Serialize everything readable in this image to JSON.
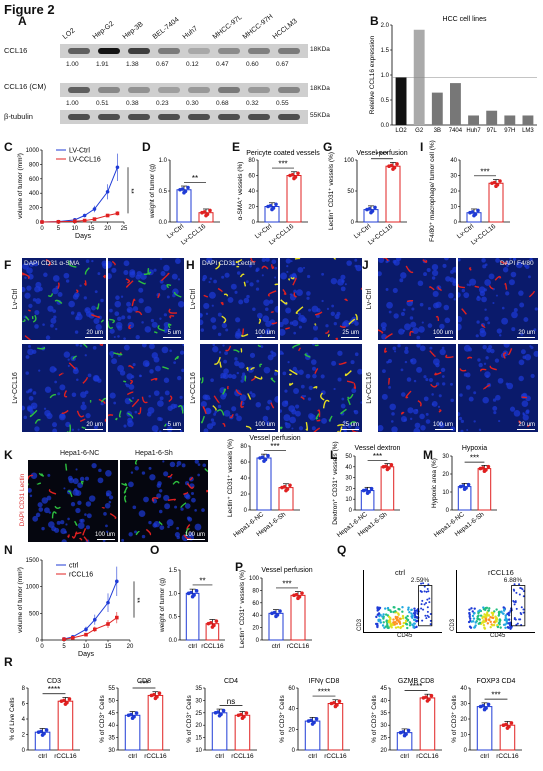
{
  "figure_title": "Figure 2",
  "panels": {
    "A": "A",
    "B": "B",
    "C": "C",
    "D": "D",
    "E": "E",
    "F": "F",
    "G": "G",
    "H": "H",
    "I": "I",
    "J": "J",
    "K": "K",
    "L": "L",
    "M": "M",
    "N": "N",
    "O": "O",
    "P": "P",
    "Q": "Q",
    "R": "R"
  },
  "western": {
    "lanes": [
      "LO2",
      "Hep-G2",
      "Hep-3B",
      "BEL-7404",
      "Huh7",
      "MHCC-97L",
      "MHCC-97H",
      "HCCLM3"
    ],
    "rows": [
      {
        "label": "CCL16",
        "kda": "18KDa",
        "values": [
          "1.00",
          "1.91",
          "1.38",
          "0.67",
          "0.12",
          "0.47",
          "0.60",
          "0.67"
        ]
      },
      {
        "label": "CCL16 (CM)",
        "kda": "18KDa",
        "values": [
          "1.00",
          "0.51",
          "0.38",
          "0.23",
          "0.30",
          "0.68",
          "0.32",
          "0.55"
        ]
      },
      {
        "label": "β-tubulin",
        "kda": "55KDa",
        "values": []
      }
    ]
  },
  "chart_data": [
    {
      "id": "B",
      "type": "bar",
      "title": "HCC cell lines",
      "ylabel": "Relelive CCL16 expression",
      "categories": [
        "LO2",
        "G2",
        "3B",
        "7404",
        "Huh7",
        "97L",
        "97H",
        "LM3"
      ],
      "values": [
        1.0,
        2.0,
        0.68,
        0.88,
        0.2,
        0.3,
        0.2,
        0.2
      ],
      "ylim": [
        0,
        2.1
      ],
      "yticks": [
        "0.0",
        "0.5",
        "1.0",
        "1.5",
        "2.0"
      ]
    },
    {
      "id": "C",
      "type": "line",
      "ylabel": "volume of tumor (mm³)",
      "xlabel": "Days",
      "x": [
        0,
        5,
        10,
        13,
        16,
        20,
        23
      ],
      "series": [
        {
          "name": "LV-Ctrl",
          "values": [
            0,
            5,
            30,
            90,
            180,
            420,
            760
          ]
        },
        {
          "name": "LV-CCL16",
          "values": [
            0,
            3,
            10,
            20,
            40,
            90,
            120
          ]
        }
      ],
      "ylim": [
        0,
        1000
      ],
      "yticks": [
        "0",
        "200",
        "400",
        "600",
        "800",
        "1000"
      ],
      "xticks": [
        "0",
        "5",
        "10",
        "15",
        "20",
        "25"
      ],
      "sig": "**"
    },
    {
      "id": "D",
      "type": "scatter",
      "ylabel": "weight of tumor (g)",
      "categories": [
        "Lv-Ctrl",
        "Lv-CCL16"
      ],
      "values": [
        0.52,
        0.15
      ],
      "ylim": [
        0,
        1.0
      ],
      "yticks": [
        "0.0",
        "0.5",
        "1.0"
      ],
      "sig": "**"
    },
    {
      "id": "E",
      "type": "scatter",
      "title": "Pericyte coated vessels",
      "ylabel": "α-SMA⁺ vessels (%)",
      "categories": [
        "Lv-Ctrl",
        "Lv-CCL16"
      ],
      "values": [
        20,
        60
      ],
      "ylim": [
        0,
        80
      ],
      "yticks": [
        "0",
        "20",
        "40",
        "60",
        "80"
      ],
      "sig": "***"
    },
    {
      "id": "G",
      "type": "scatter",
      "title": "Vessel perfusion",
      "ylabel": "Lectin⁺ CD31⁺ vessels (%)",
      "categories": [
        "Lv-Ctrl",
        "Lv-CCL16"
      ],
      "values": [
        20,
        90
      ],
      "ylim": [
        0,
        100
      ],
      "yticks": [
        "0",
        "50",
        "100"
      ],
      "sig": "****"
    },
    {
      "id": "I",
      "type": "scatter",
      "ylabel": "F4/80⁺ macrophage/ tumor cell (%)",
      "categories": [
        "Lv-Ctrl",
        "Lv-CCL16"
      ],
      "values": [
        6,
        25
      ],
      "ylim": [
        0,
        40
      ],
      "yticks": [
        "0",
        "10",
        "20",
        "30",
        "40"
      ],
      "sig": "***"
    },
    {
      "id": "K",
      "type": "scatter",
      "title": "Vessel perfusion",
      "ylabel": "Lectin⁺ CD31⁺ vessels (%)",
      "categories": [
        "Hepa1-6-NC",
        "Hepa1-6-Sh"
      ],
      "values": [
        65,
        28
      ],
      "ylim": [
        0,
        80
      ],
      "yticks": [
        "0",
        "20",
        "40",
        "60",
        "80"
      ],
      "sig": "***"
    },
    {
      "id": "L",
      "type": "scatter",
      "title": "Vessel dextron",
      "ylabel": "Dextron⁺ CD31⁺ vessels (%)",
      "categories": [
        "Hepa1-6-NC",
        "Hepa1-6-Sh"
      ],
      "values": [
        18,
        40
      ],
      "ylim": [
        0,
        50
      ],
      "yticks": [
        "0",
        "10",
        "20",
        "30",
        "40",
        "50"
      ],
      "sig": "***"
    },
    {
      "id": "M",
      "type": "scatter",
      "title": "Hypoxia",
      "ylabel": "Hypoxic area (%)",
      "categories": [
        "Hepa1-6-NC",
        "Hepa1-6-Sh"
      ],
      "values": [
        13,
        23
      ],
      "ylim": [
        0,
        30
      ],
      "yticks": [
        "0",
        "10",
        "20",
        "30"
      ],
      "sig": "***"
    },
    {
      "id": "N",
      "type": "line",
      "ylabel": "volume of tumor (mm³)",
      "xlabel": "Days",
      "x": [
        5,
        7,
        10,
        12,
        15,
        17
      ],
      "series": [
        {
          "name": "ctrl",
          "values": [
            20,
            60,
            200,
            380,
            700,
            1100
          ]
        },
        {
          "name": "rCCL16",
          "values": [
            15,
            40,
            100,
            200,
            300,
            420
          ]
        }
      ],
      "ylim": [
        0,
        1500
      ],
      "yticks": [
        "0",
        "500",
        "1000",
        "1500"
      ],
      "xticks": [
        "0",
        "5",
        "10",
        "15",
        "20"
      ],
      "sig": "**"
    },
    {
      "id": "O",
      "type": "scatter",
      "ylabel": "weight of tumor (g)",
      "categories": [
        "ctrl",
        "rCCL16"
      ],
      "values": [
        1.0,
        0.35
      ],
      "ylim": [
        0,
        1.5
      ],
      "yticks": [
        "0.0",
        "0.5",
        "1.0",
        "1.5"
      ],
      "sig": "**"
    },
    {
      "id": "P",
      "type": "scatter",
      "title": "Vessel perfusion",
      "ylabel": "Lectin⁺ CD31⁺ vessels (%)",
      "categories": [
        "ctrl",
        "rCCL16"
      ],
      "values": [
        43,
        72
      ],
      "ylim": [
        0,
        100
      ],
      "yticks": [
        "0",
        "20",
        "40",
        "60",
        "80",
        "100"
      ],
      "sig": "***"
    },
    {
      "id": "R1",
      "type": "scatter",
      "title": "CD3",
      "ylabel": "% of Live Cells",
      "categories": [
        "ctrl",
        "rCCL16"
      ],
      "values": [
        2.3,
        6.3
      ],
      "ylim": [
        0,
        8
      ],
      "yticks": [
        "0",
        "2",
        "4",
        "6",
        "8"
      ],
      "sig": "****"
    },
    {
      "id": "R2",
      "type": "scatter",
      "title": "CD8",
      "ylabel": "% of CD3⁺ Cells",
      "categories": [
        "ctrl",
        "rCCL16"
      ],
      "values": [
        44,
        52
      ],
      "ylim": [
        30,
        55
      ],
      "yticks": [
        "30",
        "35",
        "40",
        "45",
        "50",
        "55"
      ],
      "sig": "***"
    },
    {
      "id": "R3",
      "type": "scatter",
      "title": "CD4",
      "ylabel": "% of CD3⁺ Cells",
      "categories": [
        "ctrl",
        "rCCL16"
      ],
      "values": [
        25,
        24
      ],
      "ylim": [
        10,
        35
      ],
      "yticks": [
        "10",
        "15",
        "20",
        "25",
        "30",
        "35"
      ],
      "sig": "ns"
    },
    {
      "id": "R4",
      "type": "scatter",
      "title": "IFNγ CD8",
      "ylabel": "% of CD3⁺ Cells",
      "categories": [
        "ctrl",
        "rCCL16"
      ],
      "values": [
        28,
        45
      ],
      "ylim": [
        0,
        60
      ],
      "yticks": [
        "0",
        "20",
        "40",
        "60"
      ],
      "sig": "****"
    },
    {
      "id": "R5",
      "type": "scatter",
      "title": "GZMB CD8",
      "ylabel": "% of CD3⁺ Cells",
      "categories": [
        "ctrl",
        "rCCL16"
      ],
      "values": [
        27,
        41
      ],
      "ylim": [
        20,
        45
      ],
      "yticks": [
        "20",
        "25",
        "30",
        "35",
        "40",
        "45"
      ],
      "sig": "****"
    },
    {
      "id": "R6",
      "type": "scatter",
      "title": "FOXP3 CD4",
      "ylabel": "% of CD3⁺ Cells",
      "categories": [
        "ctrl",
        "rCCL16"
      ],
      "values": [
        28,
        16
      ],
      "ylim": [
        0,
        40
      ],
      "yticks": [
        "0",
        "10",
        "20",
        "30",
        "40"
      ],
      "sig": "***"
    }
  ],
  "micro": {
    "F": {
      "stain": "DAPI CD31 α-SMA",
      "rows": [
        "Lv-Ctrl",
        "Lv-CCL16"
      ],
      "scale1": "20 um",
      "scale2": "5 um"
    },
    "H": {
      "stain": "DAPI CD31 Lectin",
      "rows": [
        "Lv-Ctrl",
        "Lv-CCL16"
      ],
      "scale1": "100 um",
      "scale2": "25 um"
    },
    "J": {
      "stain": "DAPI F4/80",
      "rows": [
        "Lv-Ctrl",
        "Lv-CCL16"
      ],
      "scale1": "100 um",
      "scale2": "20 um"
    },
    "K": {
      "cols": [
        "Hepa1-6-NC",
        "Hepa1-6-Sh"
      ],
      "stain": "DAPI CD31 Lectin",
      "scale": "100 um"
    }
  },
  "flow": {
    "ctrl": {
      "title": "ctrl",
      "pct": "2.59%"
    },
    "rccl16": {
      "title": "rCCL16",
      "pct": "6.88%"
    },
    "xlabel": "CD45",
    "ylabel": "CD3"
  }
}
